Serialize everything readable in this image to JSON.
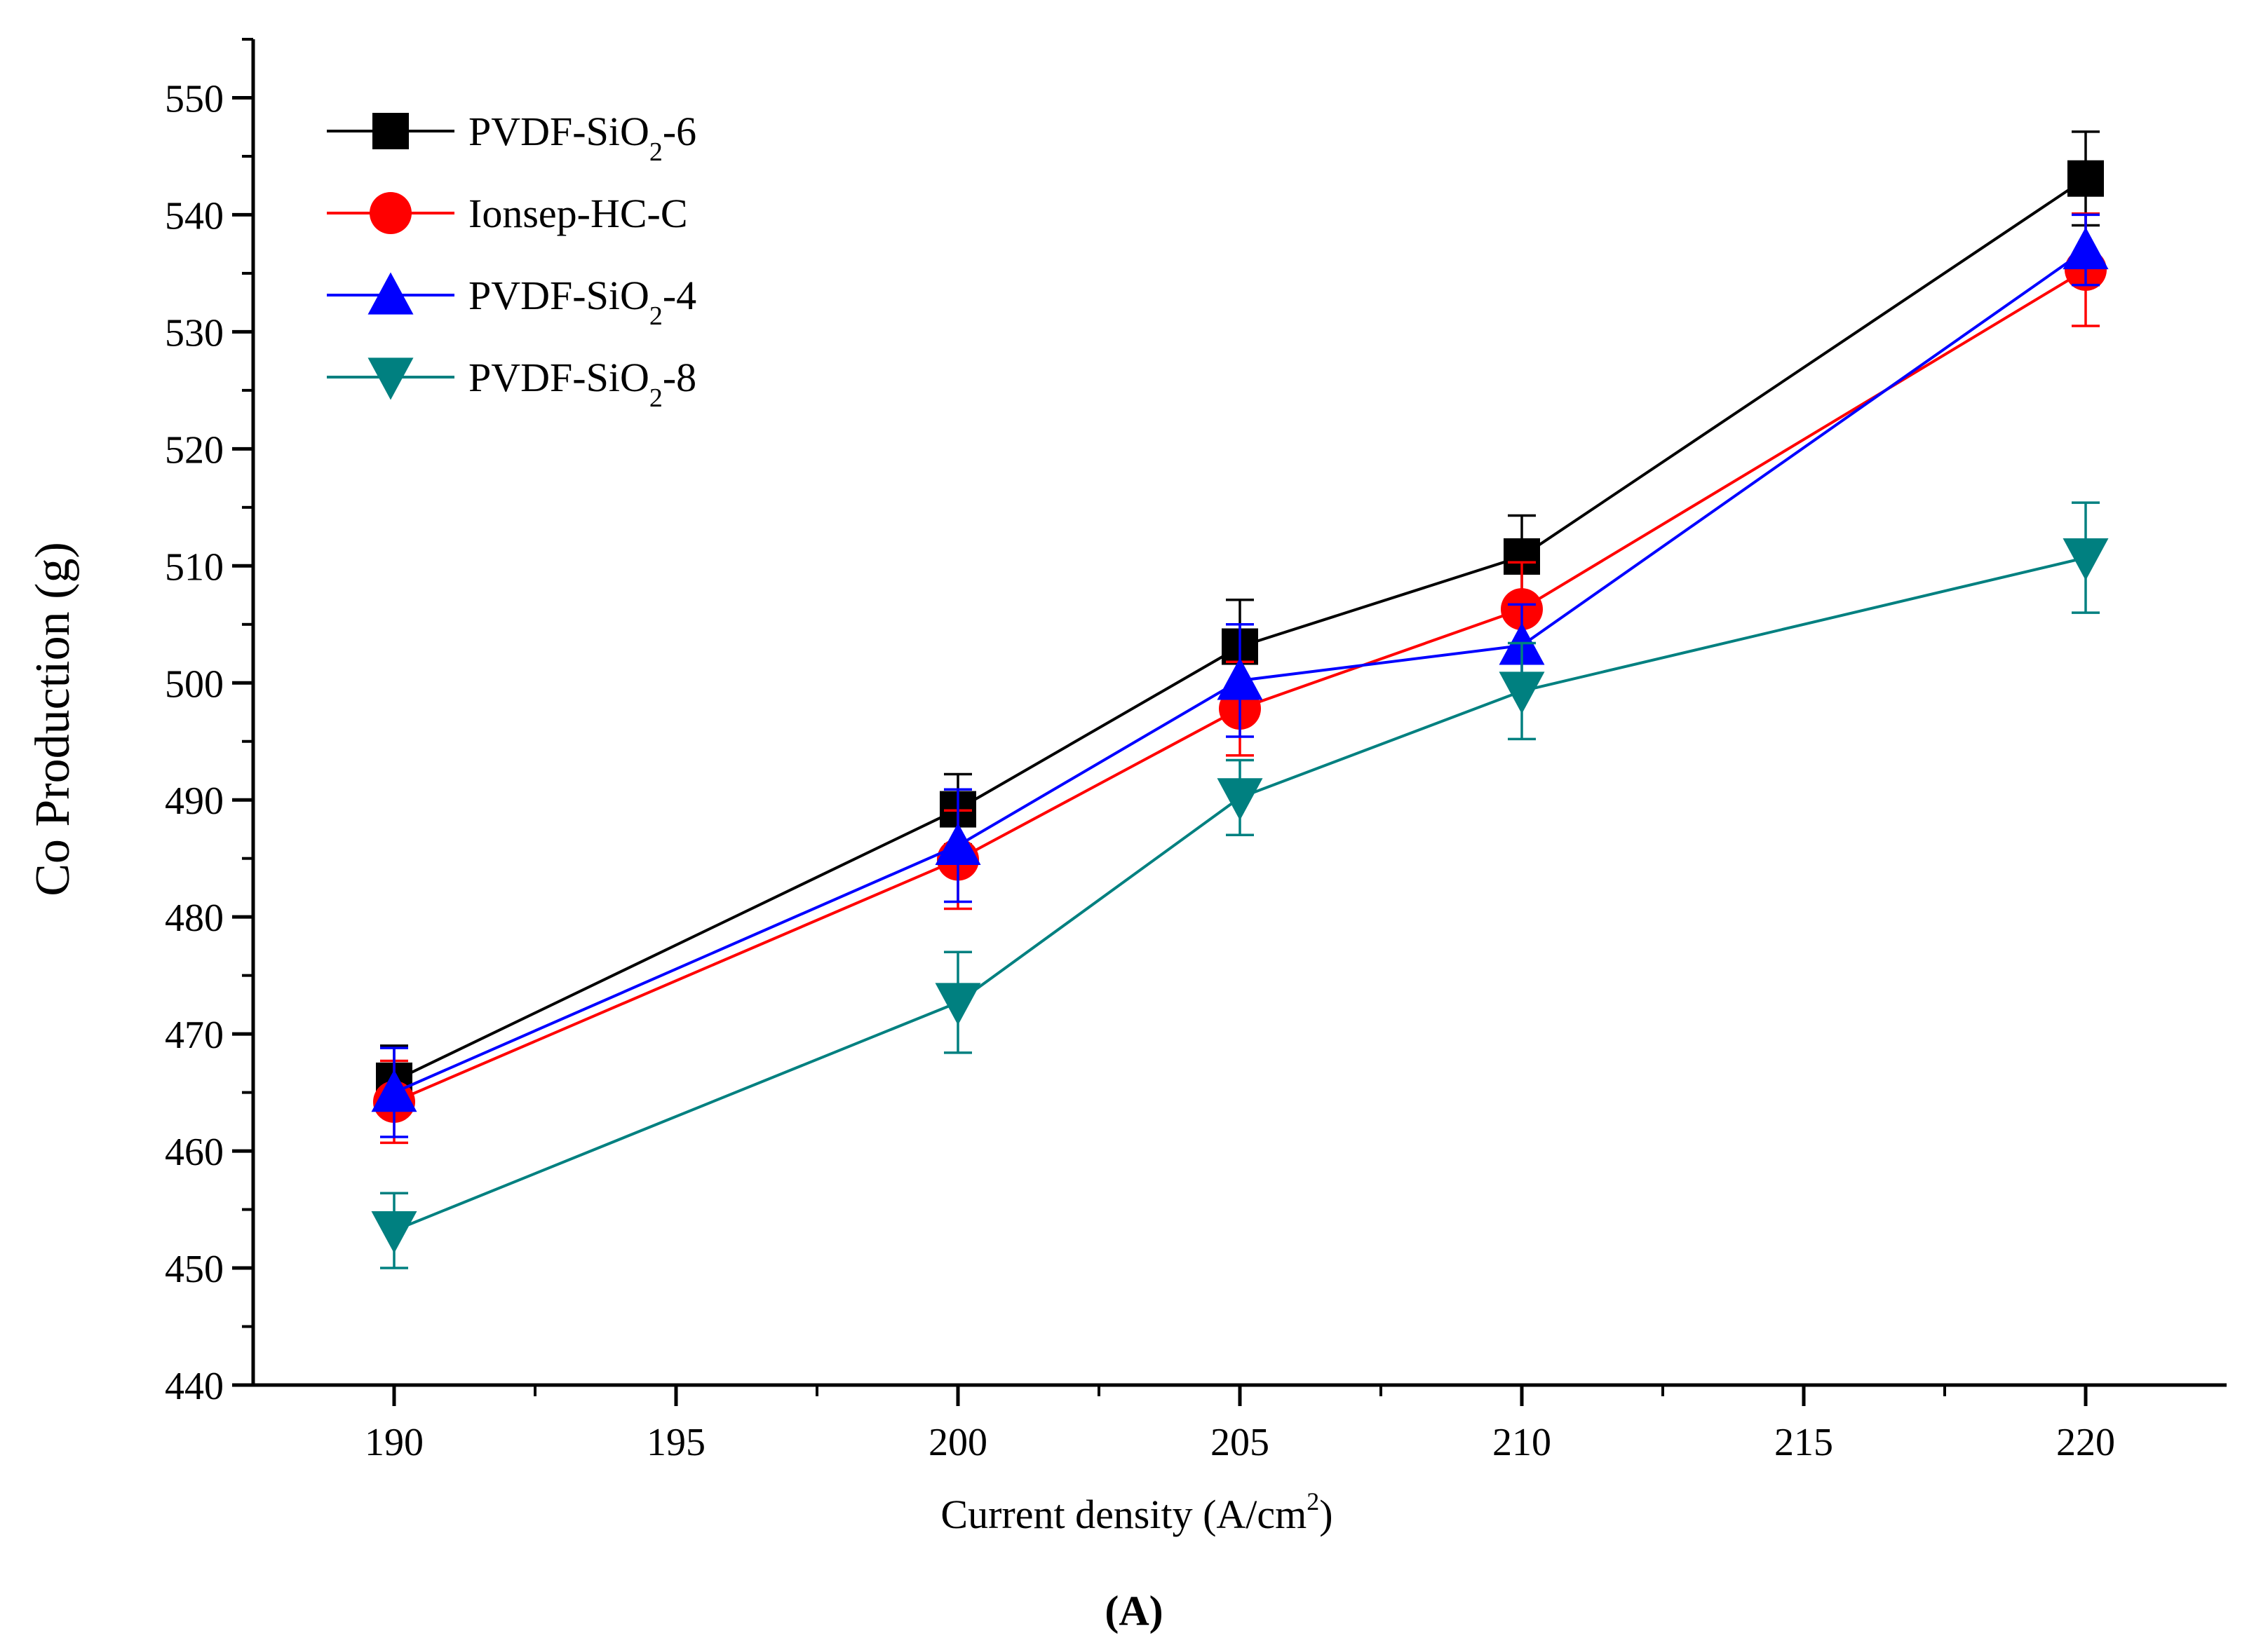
{
  "chart_data": {
    "type": "line",
    "title": "",
    "xlabel": "Current density (A/cm²)",
    "xlabel_parts": {
      "main": "Current density (A/cm",
      "sup": "2",
      "tail": ")"
    },
    "ylabel": "Co Production (g)",
    "caption": "(A)",
    "xlim": [
      187.5,
      222.5
    ],
    "ylim": [
      440,
      555
    ],
    "x_major_ticks": [
      190,
      195,
      200,
      205,
      210,
      215,
      220
    ],
    "x_tick_labels": [
      "190",
      "195",
      "200",
      "205",
      "210",
      "215",
      "220"
    ],
    "y_major_ticks": [
      440,
      450,
      460,
      470,
      480,
      490,
      500,
      510,
      520,
      530,
      540,
      550
    ],
    "y_tick_labels": [
      "440",
      "450",
      "460",
      "470",
      "480",
      "490",
      "500",
      "510",
      "520",
      "530",
      "540",
      "550"
    ],
    "x": [
      190,
      200,
      205,
      210,
      220
    ],
    "legend_position": "top-left",
    "series": [
      {
        "name": "PVDF-SiO2-6",
        "label_main": "PVDF-SiO",
        "label_sub": "2",
        "label_tail": "-6",
        "color": "#000000",
        "marker": "square",
        "values": [
          466,
          489.2,
          503.1,
          510.8,
          543.1
        ],
        "errors": [
          3,
          3,
          4,
          3.5,
          4
        ]
      },
      {
        "name": "Ionsep-HC-C",
        "label_main": "Ionsep-HC-C",
        "label_sub": "",
        "label_tail": "",
        "color": "#ff0000",
        "marker": "circle",
        "values": [
          464.2,
          484.9,
          497.8,
          506.3,
          535.3
        ],
        "errors": [
          3.5,
          4.2,
          4,
          4,
          4.8
        ]
      },
      {
        "name": "PVDF-SiO2-4",
        "label_main": "PVDF-SiO",
        "label_sub": "2",
        "label_tail": "-4",
        "color": "#0000ff",
        "marker": "triangle-up",
        "values": [
          465,
          486.1,
          500.2,
          503.2,
          537
        ],
        "errors": [
          3.8,
          4.8,
          4.8,
          3.5,
          3
        ]
      },
      {
        "name": "PVDF-SiO2-8",
        "label_main": "PVDF-SiO",
        "label_sub": "2",
        "label_tail": "-8",
        "color": "#008080",
        "marker": "triangle-down",
        "values": [
          453.2,
          472.7,
          490.2,
          499.3,
          510.7
        ],
        "errors": [
          3.2,
          4.3,
          3.2,
          4.1,
          4.7
        ]
      }
    ]
  }
}
